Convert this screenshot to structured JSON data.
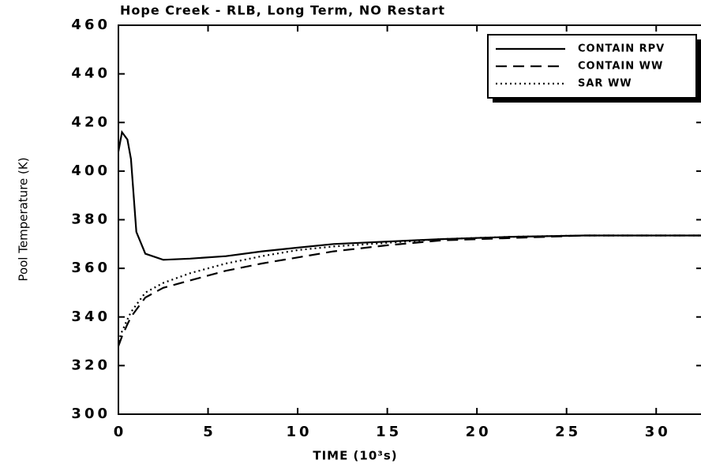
{
  "chart_data": {
    "type": "line",
    "title": "Hope Creek - RLB, Long Term, NO Restart",
    "xlabel": "TIME  (10³s)",
    "ylabel": "Pool Temperature (K)",
    "x": [
      0,
      0.2,
      0.5,
      0.7,
      1,
      1.5,
      2.5,
      4,
      6,
      8,
      10,
      12,
      15,
      18,
      22,
      26,
      32.5
    ],
    "series": [
      {
        "name": "CONTAIN RPV",
        "color": "#000000",
        "style": "solid",
        "values": [
          408,
          416,
          413,
          405,
          375,
          366,
          363.5,
          364,
          365,
          367,
          368.5,
          370,
          371,
          372,
          373,
          373.5,
          373.5
        ]
      },
      {
        "name": "CONTAIN WW",
        "color": "#000000",
        "style": "dashed",
        "values": [
          328,
          332,
          337,
          340,
          343,
          348,
          352,
          355,
          359,
          362,
          364.5,
          367,
          369.5,
          371.5,
          372.5,
          373.5,
          373.5
        ]
      },
      {
        "name": "SAR WW",
        "color": "#000000",
        "style": "dotted",
        "values": [
          330,
          334,
          339,
          342,
          345,
          350,
          354,
          358,
          362,
          365,
          367.5,
          369,
          370.5,
          372,
          373,
          373.5,
          373.5
        ]
      }
    ],
    "xlim": [
      0,
      32.5
    ],
    "xticks": [
      0,
      5,
      10,
      15,
      20,
      25,
      30
    ],
    "ylim": [
      300,
      460
    ],
    "yticks": [
      300,
      320,
      340,
      360,
      380,
      400,
      420,
      440,
      460
    ],
    "legend": "upper right",
    "grid": false
  }
}
